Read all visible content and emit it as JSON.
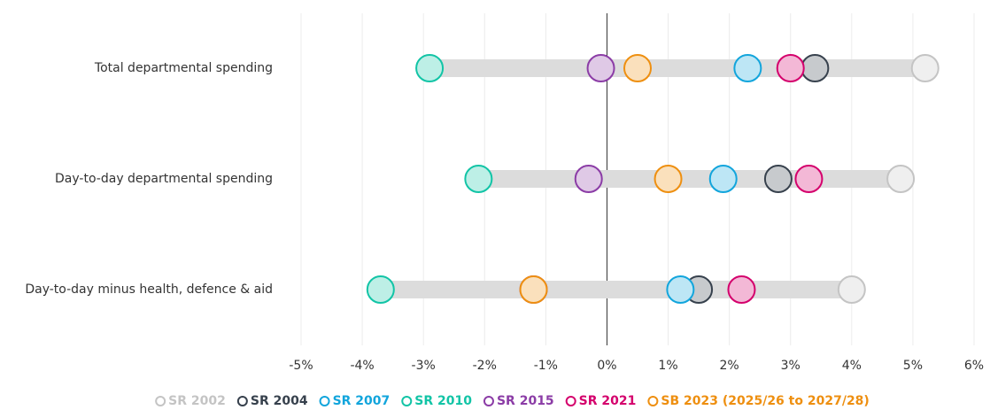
{
  "chart_data": {
    "type": "dot",
    "categories": [
      "Total departmental spending",
      "Day-to-day departmental spending",
      "Day-to-day minus health, defence & aid"
    ],
    "series": [
      {
        "name": "SR 2002",
        "color": "#c4c4c4",
        "values": [
          5.2,
          4.8,
          4.0
        ]
      },
      {
        "name": "SR 2004",
        "color": "#37414d",
        "values": [
          3.4,
          2.8,
          1.5
        ]
      },
      {
        "name": "SR 2007",
        "color": "#12a5dc",
        "values": [
          2.3,
          1.9,
          1.2
        ]
      },
      {
        "name": "SR 2010",
        "color": "#12c4a6",
        "values": [
          -2.9,
          -2.1,
          -3.7
        ]
      },
      {
        "name": "SR 2015",
        "color": "#8b3ca6",
        "values": [
          -0.1,
          -0.3,
          -1.2
        ]
      },
      {
        "name": "SR 2021",
        "color": "#d4006c",
        "values": [
          3.0,
          3.3,
          2.2
        ]
      },
      {
        "name": "SB 2023 (2025/26 to 2027/28)",
        "color": "#ee8f10",
        "values": [
          0.5,
          1.0,
          -1.2
        ]
      }
    ],
    "xlim": [
      -5,
      6
    ],
    "xticks": [
      {
        "value": -5,
        "label": "-5%"
      },
      {
        "value": -4,
        "label": "-4%"
      },
      {
        "value": -3,
        "label": "-3%"
      },
      {
        "value": -2,
        "label": "-2%"
      },
      {
        "value": -1,
        "label": "-1%"
      },
      {
        "value": 0,
        "label": "0%"
      },
      {
        "value": 1,
        "label": "1%"
      },
      {
        "value": 2,
        "label": "2%"
      },
      {
        "value": 3,
        "label": "3%"
      },
      {
        "value": 4,
        "label": "4%"
      },
      {
        "value": 5,
        "label": "5%"
      },
      {
        "value": 6,
        "label": "6%"
      }
    ],
    "grid": true
  }
}
